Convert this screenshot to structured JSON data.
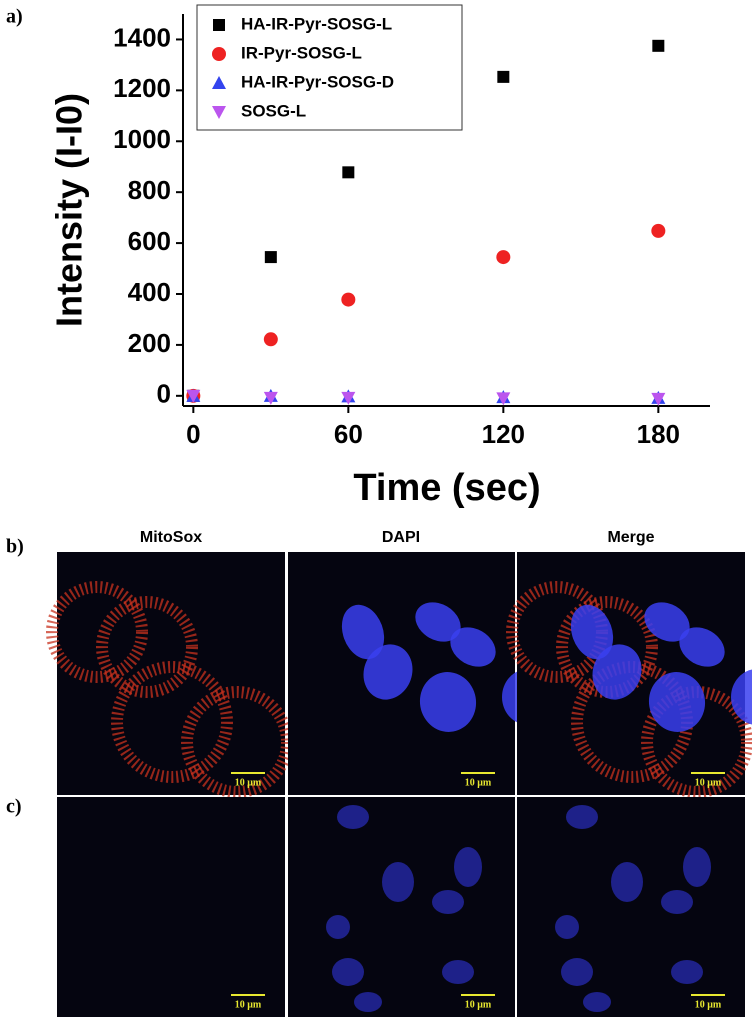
{
  "chart_data": {
    "type": "scatter",
    "xlabel": "Time (sec)",
    "ylabel": "Intensity (I-I0)",
    "x": [
      0,
      30,
      60,
      120,
      180
    ],
    "series": [
      {
        "name": "HA-IR-Pyr-SOSG-L",
        "color": "#000000",
        "marker": "square",
        "values": [
          0,
          545,
          878,
          1253,
          1375
        ]
      },
      {
        "name": "IR-Pyr-SOSG-L",
        "color": "#ee2222",
        "marker": "circle",
        "values": [
          0,
          222,
          378,
          545,
          648
        ]
      },
      {
        "name": "HA-IR-Pyr-SOSG-D",
        "color": "#3344ee",
        "marker": "triangle-up",
        "values": [
          0,
          0,
          -2,
          -5,
          -8
        ]
      },
      {
        "name": "SOSG-L",
        "color": "#bb55ee",
        "marker": "triangle-down",
        "values": [
          0,
          -8,
          -8,
          -10,
          -12
        ]
      }
    ],
    "xlim": [
      -4,
      200
    ],
    "xticks": [
      0,
      60,
      120,
      180
    ],
    "ylim": [
      -40,
      1500
    ],
    "yticks": [
      0,
      200,
      400,
      600,
      800,
      1000,
      1200,
      1400
    ],
    "legend": "upper left"
  },
  "panel_labels": [
    "a)",
    "b)",
    "c)"
  ],
  "columns": [
    "MitoSox",
    "DAPI",
    "Merge"
  ],
  "scale_bar": "10 μm"
}
